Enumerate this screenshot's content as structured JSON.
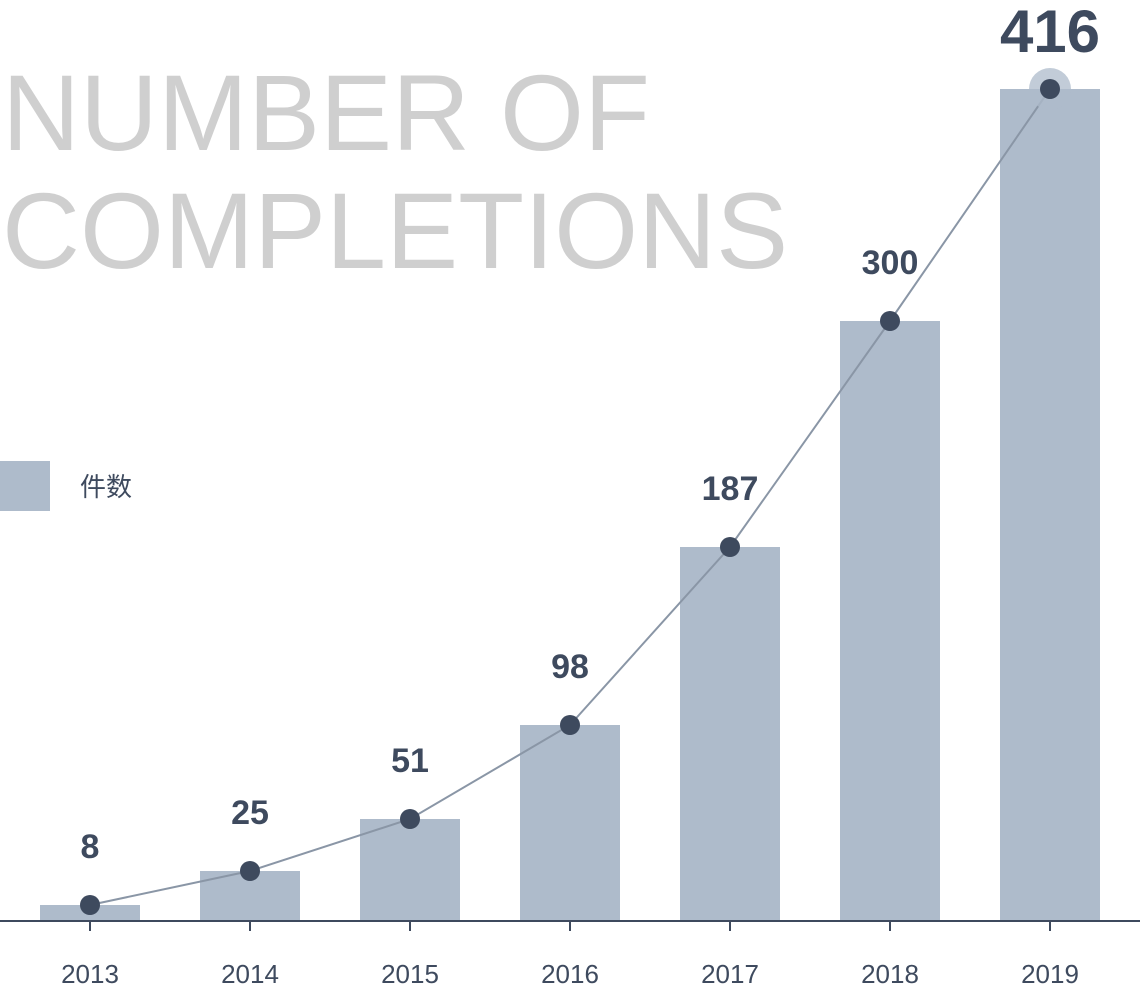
{
  "chart_data": {
    "type": "bar",
    "title_lines": [
      "NUMBER OF",
      "COMPLETIONS"
    ],
    "xlabel": "",
    "ylabel": "",
    "categories": [
      "2013",
      "2014",
      "2015",
      "2016",
      "2017",
      "2018",
      "2019"
    ],
    "series": [
      {
        "name": "件数",
        "values": [
          8,
          25,
          51,
          98,
          187,
          300,
          416
        ]
      }
    ],
    "overlay": "line connecting bar tops with markers",
    "ylim": [
      0,
      416
    ],
    "grid": false,
    "legend_position": "left",
    "highlight_last": true,
    "colors": {
      "bar": "#aebbcb",
      "line": "#8a96a6",
      "marker": "#3e4a5e",
      "marker_halo": "#aebbcb",
      "axis": "#3e4a5e",
      "text": "#3e4a5e",
      "title": "#cfcfcf"
    }
  }
}
